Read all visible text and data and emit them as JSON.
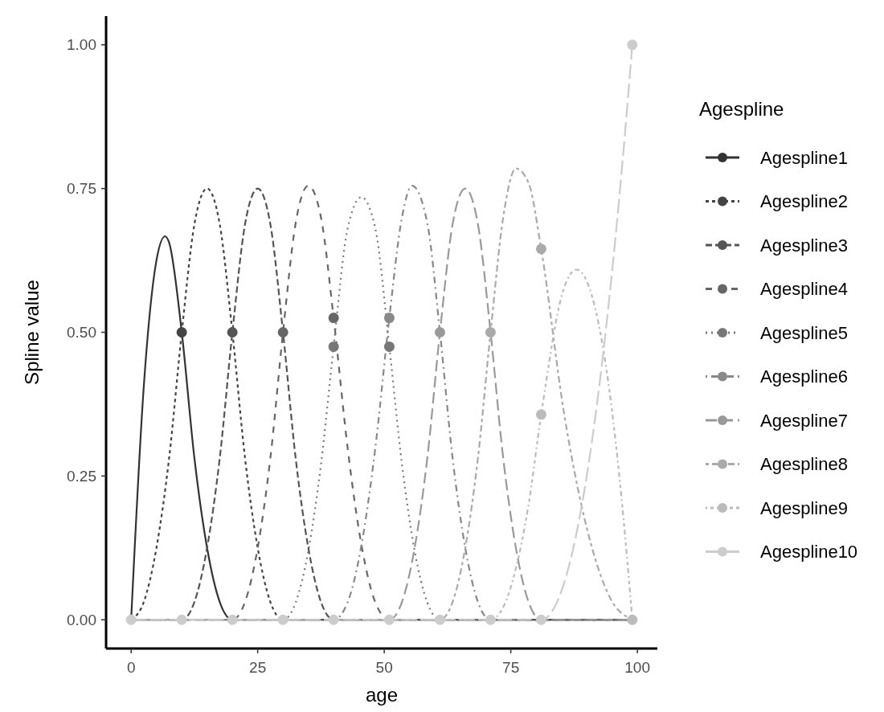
{
  "chart_data": {
    "type": "line",
    "xlabel": "age",
    "ylabel": "Spline value",
    "legend_title": "Agespline",
    "legend": "right",
    "grid": false,
    "marker": "circle",
    "xlim": [
      -4.95,
      103.95
    ],
    "xticks": [
      0,
      25,
      50,
      75,
      100
    ],
    "ylim": [
      -0.05,
      1.05
    ],
    "yticks": [
      {
        "value": 0,
        "label": "0.00"
      },
      {
        "value": 0.25,
        "label": "0.25"
      },
      {
        "value": 0.5,
        "label": "0.50"
      },
      {
        "value": 0.75,
        "label": "0.75"
      },
      {
        "value": 1,
        "label": "1.00"
      }
    ],
    "series": [
      {
        "name": "Agespline1",
        "color": "#333333",
        "line_style": "solid",
        "marker": "none",
        "x": [
          0,
          2.5,
          5,
          6.7,
          7.5,
          10,
          12.5,
          15,
          17.5,
          20,
          99
        ],
        "values": [
          0,
          0.406,
          0.625,
          0.667,
          0.656,
          0.5,
          0.281,
          0.125,
          0.031,
          0,
          0
        ]
      },
      {
        "name": "Agespline2",
        "color": "#444444",
        "line_style": "dashed",
        "marker": "none",
        "x": [
          0,
          2.5,
          5,
          7.5,
          10,
          12.5,
          15,
          17.5,
          20,
          22.5,
          25,
          27.5,
          30,
          99
        ],
        "values": [
          0,
          0.031,
          0.125,
          0.281,
          0.5,
          0.688,
          0.75,
          0.688,
          0.5,
          0.281,
          0.125,
          0.031,
          0,
          0
        ]
      },
      {
        "name": "Agespline3",
        "color": "#555555",
        "line_style": "dashed",
        "marker": "none",
        "x": [
          0,
          10,
          12.5,
          15,
          17.5,
          20,
          22.5,
          25,
          27.5,
          30,
          32.5,
          35,
          37.5,
          40,
          99
        ],
        "values": [
          0,
          0,
          0.031,
          0.125,
          0.281,
          0.5,
          0.688,
          0.75,
          0.688,
          0.5,
          0.281,
          0.125,
          0.031,
          0,
          0
        ]
      },
      {
        "name": "Agespline4",
        "color": "#666666",
        "line_style": "dashed",
        "marker": "none",
        "x": [
          0,
          20,
          22.5,
          25,
          27.5,
          30,
          32.5,
          35,
          37.5,
          40,
          42.75,
          45.5,
          48.25,
          51,
          99
        ],
        "values": [
          0,
          0,
          0.031,
          0.125,
          0.281,
          0.5,
          0.69,
          0.755,
          0.7,
          0.525,
          0.3,
          0.13,
          0.03,
          0,
          0
        ]
      },
      {
        "name": "Agespline5",
        "color": "#777777",
        "line_style": "dotted",
        "marker": "none",
        "x": [
          0,
          30,
          32.5,
          35,
          37.5,
          40,
          42.75,
          45.5,
          48.25,
          51,
          53.5,
          56,
          58.5,
          61,
          99
        ],
        "values": [
          0,
          0,
          0.03,
          0.12,
          0.27,
          0.475,
          0.68,
          0.735,
          0.68,
          0.475,
          0.27,
          0.12,
          0.03,
          0,
          0
        ]
      },
      {
        "name": "Agespline6",
        "color": "#888888",
        "line_style": "dotted",
        "marker": "none",
        "x": [
          0,
          40,
          42.75,
          45.5,
          48.25,
          51,
          53.5,
          55.5,
          58.5,
          61,
          63.5,
          66,
          68.5,
          71,
          99
        ],
        "values": [
          0,
          0,
          0.03,
          0.13,
          0.3,
          0.525,
          0.7,
          0.755,
          0.69,
          0.5,
          0.281,
          0.125,
          0.031,
          0,
          0
        ]
      },
      {
        "name": "Agespline7",
        "color": "#999999",
        "line_style": "dashed",
        "marker": "none",
        "x": [
          0,
          51,
          53.5,
          56,
          58.5,
          61,
          63.5,
          66,
          68.5,
          71,
          73.5,
          76,
          78.5,
          81,
          99
        ],
        "values": [
          0,
          0,
          0.031,
          0.125,
          0.281,
          0.5,
          0.688,
          0.75,
          0.688,
          0.5,
          0.281,
          0.125,
          0.031,
          0,
          0
        ]
      },
      {
        "name": "Agespline8",
        "color": "#aaaaaa",
        "line_style": "dashed",
        "marker": "none",
        "x": [
          0,
          61,
          63.5,
          66,
          68.5,
          71,
          73.5,
          76,
          78.5,
          81,
          85.5,
          90,
          94.5,
          99
        ],
        "values": [
          0,
          0,
          0.031,
          0.125,
          0.281,
          0.5,
          0.7,
          0.785,
          0.76,
          0.645,
          0.36,
          0.16,
          0.04,
          0
        ]
      },
      {
        "name": "Agespline9",
        "color": "#bbbbbb",
        "line_style": "dashed",
        "marker": "none",
        "x": [
          0,
          71,
          73.5,
          76,
          78.5,
          81,
          85.5,
          88,
          90,
          94.5,
          97,
          99
        ],
        "values": [
          0,
          0,
          0.022,
          0.089,
          0.2,
          0.357,
          0.577,
          0.609,
          0.589,
          0.397,
          0.2,
          0
        ]
      },
      {
        "name": "Agespline10",
        "color": "#cccccc",
        "line_style": "dashed",
        "marker": "none",
        "x": [
          0,
          81,
          85.5,
          90,
          94.5,
          97,
          99
        ],
        "values": [
          0,
          0,
          0.063,
          0.25,
          0.563,
          0.79,
          1
        ]
      },
      {
        "type": "scatter",
        "color": "#444444",
        "x": [
          10
        ],
        "values": [
          0.5
        ]
      },
      {
        "type": "scatter",
        "color": "#555555",
        "x": [
          20
        ],
        "values": [
          0.5
        ]
      },
      {
        "type": "scatter",
        "color": "#666666",
        "x": [
          30,
          40
        ],
        "values": [
          0.5,
          0.525
        ]
      },
      {
        "type": "scatter",
        "color": "#777777",
        "x": [
          40,
          51
        ],
        "values": [
          0.475,
          0.475
        ]
      },
      {
        "type": "scatter",
        "color": "#888888",
        "x": [
          51
        ],
        "values": [
          0.525
        ]
      },
      {
        "type": "scatter",
        "color": "#999999",
        "x": [
          61
        ],
        "values": [
          0.5
        ]
      },
      {
        "type": "scatter",
        "color": "#aaaaaa",
        "x": [
          71,
          81
        ],
        "values": [
          0.5,
          0.645
        ]
      },
      {
        "type": "scatter",
        "color": "#bbbbbb",
        "x": [
          81,
          99
        ],
        "values": [
          0.357,
          0
        ]
      },
      {
        "type": "scatter",
        "color": "#cccccc",
        "x": [
          0,
          10,
          20,
          30,
          40,
          51,
          61,
          71,
          81,
          99
        ],
        "values": [
          0,
          0,
          0,
          0,
          0,
          0,
          0,
          0,
          0,
          1
        ]
      }
    ]
  }
}
